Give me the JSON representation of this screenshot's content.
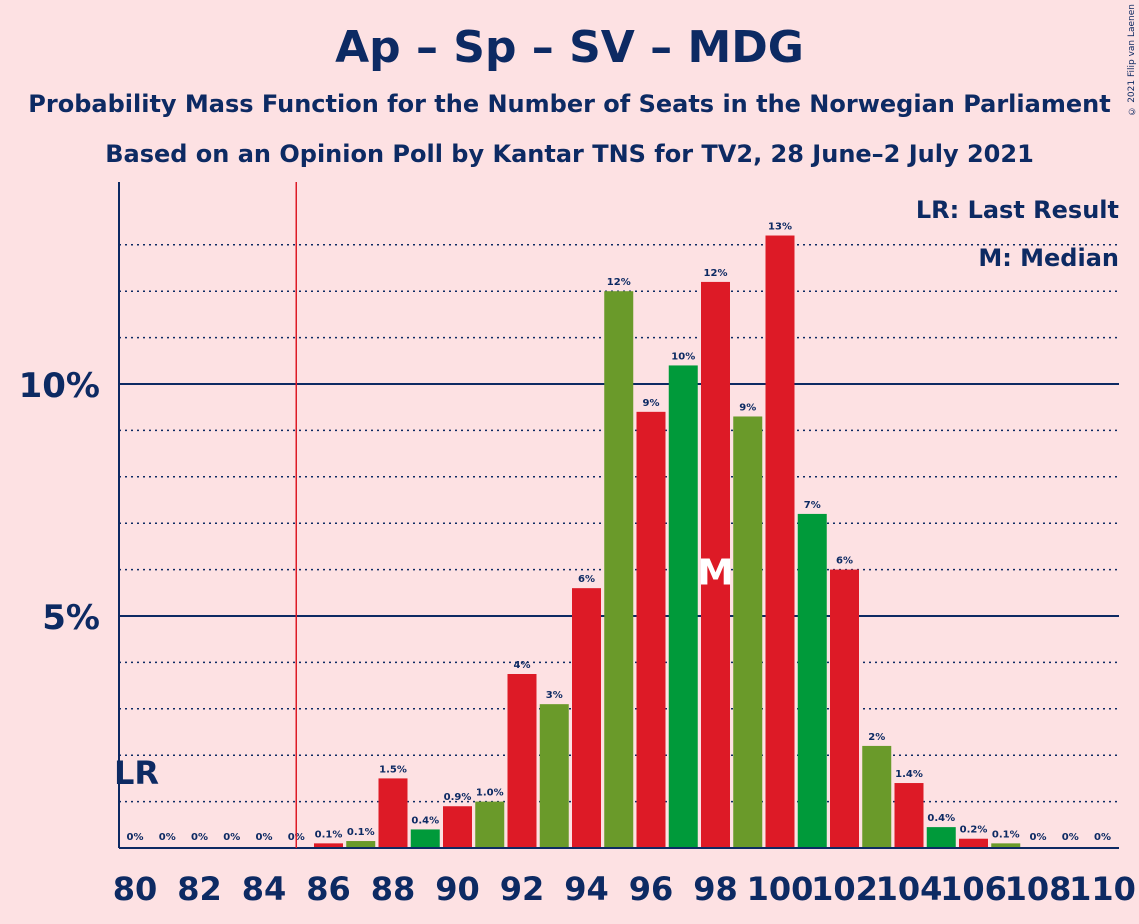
{
  "header": {
    "title": "Ap – Sp – SV – MDG",
    "subtitle1": "Probability Mass Function for the Number of Seats in the Norwegian Parliament",
    "subtitle2": "Based on an Opinion Poll by Kantar TNS for TV2, 28 June–2 July 2021",
    "credit": "© 2021 Filip van Laenen"
  },
  "legend": {
    "last_result": "LR: Last Result",
    "median": "M: Median"
  },
  "colors": {
    "background": "#FDE1E3",
    "text": "#0D2A63",
    "red": "#DD1A26",
    "green": "#009A3A",
    "olive": "#6A9A2A",
    "lr_line": "#DD1A26"
  },
  "chart_data": {
    "type": "bar",
    "x": [
      80,
      81,
      82,
      83,
      84,
      85,
      86,
      87,
      88,
      89,
      90,
      91,
      92,
      93,
      94,
      95,
      96,
      97,
      98,
      99,
      100,
      101,
      102,
      103,
      104,
      105,
      106,
      107,
      108,
      109,
      110
    ],
    "values": [
      0,
      0,
      0,
      0,
      0,
      0,
      0.1,
      0.15,
      1.5,
      0.4,
      0.9,
      1.0,
      3.75,
      3.1,
      5.6,
      12.0,
      9.4,
      10.4,
      12.2,
      9.3,
      13.2,
      7.2,
      6.0,
      2.2,
      1.4,
      0.45,
      0.2,
      0.1,
      0,
      0,
      0
    ],
    "labels": [
      "0%",
      "0%",
      "0%",
      "0%",
      "0%",
      "0%",
      "0.1%",
      "0.1%",
      "1.5%",
      "0.4%",
      "0.9%",
      "1.0%",
      "4%",
      "3%",
      "6%",
      "12%",
      "9%",
      "10%",
      "12%",
      "9%",
      "13%",
      "7%",
      "6%",
      "2%",
      "1.4%",
      "0.4%",
      "0.2%",
      "0.1%",
      "0%",
      "0%",
      "0%"
    ],
    "colors": [
      "red",
      "olive",
      "green",
      "red",
      "red",
      "olive",
      "red",
      "olive",
      "red",
      "green",
      "red",
      "olive",
      "red",
      "olive",
      "red",
      "olive",
      "red",
      "green",
      "red",
      "olive",
      "red",
      "green",
      "red",
      "olive",
      "red",
      "green",
      "red",
      "olive",
      "red",
      "green",
      "red"
    ],
    "x_tick_labels": [
      "80",
      "82",
      "84",
      "86",
      "88",
      "90",
      "92",
      "94",
      "96",
      "98",
      "100",
      "102",
      "104",
      "106",
      "108",
      "110"
    ],
    "y_tick_labels": [
      "5%",
      "10%"
    ],
    "ylim": [
      0,
      14.4
    ],
    "last_result": 85,
    "last_result_label": "LR",
    "median": 98,
    "median_label": "M"
  }
}
